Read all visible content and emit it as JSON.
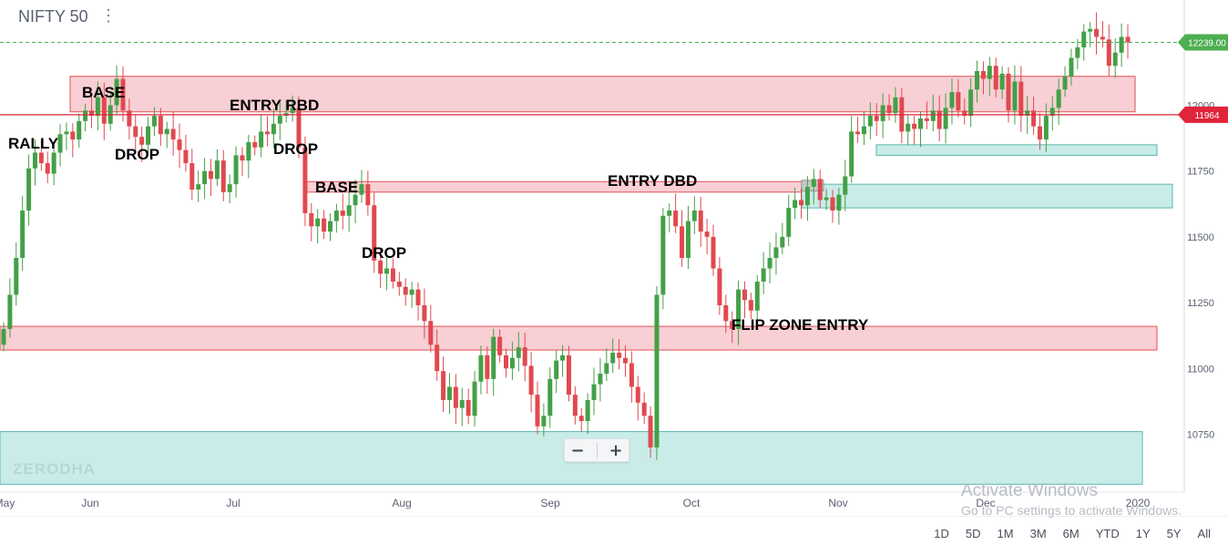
{
  "header": {
    "title": "NIFTY 50",
    "menu_icon": "vertical-dots-icon"
  },
  "zoom": {
    "minus_label": "−",
    "plus_label": "+"
  },
  "watermark": {
    "brand": "ZERODHA",
    "line1": "Activate Windows",
    "line2": "Go to PC settings to activate Windows."
  },
  "ranges": [
    "1D",
    "5D",
    "1M",
    "3M",
    "6M",
    "YTD",
    "1Y",
    "5Y",
    "All"
  ],
  "colors": {
    "up": "#43a047",
    "down": "#e0494f",
    "supply_fill": "#f8cdd2",
    "supply_border": "#e0494f",
    "demand_fill": "#c8ebe7",
    "demand_border": "#4db6ac",
    "price_tag": "#4caf50",
    "level_tag": "#e0243a"
  },
  "chart_data": {
    "type": "candlestick",
    "title": "NIFTY 50",
    "y_ticks": [
      10750,
      11000,
      11250,
      11500,
      11750,
      12000
    ],
    "ylim": [
      10530,
      12400
    ],
    "x_tick_labels": [
      "May",
      "Jun",
      "Jul",
      "Aug",
      "Sep",
      "Oct",
      "Nov",
      "Dec",
      "2020"
    ],
    "last_price_label": "12239.00",
    "horizontal_level_label": "11964",
    "horizontal_level": 11964,
    "last_price": 12239,
    "zones": [
      {
        "kind": "supply",
        "low": 11975,
        "high": 12110
      },
      {
        "kind": "supply",
        "low": 11670,
        "high": 11710
      },
      {
        "kind": "demand",
        "low": 11610,
        "high": 11700
      },
      {
        "kind": "demand",
        "low": 11810,
        "high": 11850
      },
      {
        "kind": "supply",
        "low": 11070,
        "high": 11160
      },
      {
        "kind": "demand",
        "low": 10560,
        "high": 10760
      }
    ],
    "annotations": [
      "RALLY",
      "BASE",
      "DROP",
      "ENTRY RBD",
      "DROP",
      "BASE",
      "DROP",
      "ENTRY DBD",
      "FLIP ZONE ENTRY"
    ],
    "closes": [
      11150,
      11280,
      11420,
      11600,
      11760,
      11820,
      11780,
      11740,
      11820,
      11890,
      11900,
      11870,
      11940,
      11980,
      11960,
      12030,
      11930,
      12000,
      12100,
      11980,
      11920,
      11880,
      11850,
      11920,
      11960,
      11890,
      11910,
      11870,
      11830,
      11780,
      11680,
      11700,
      11750,
      11720,
      11790,
      11670,
      11700,
      11810,
      11790,
      11860,
      11840,
      11900,
      11890,
      11930,
      11960,
      11970,
      11990,
      11840,
      11590,
      11540,
      11570,
      11520,
      11560,
      11600,
      11580,
      11620,
      11660,
      11700,
      11620,
      11410,
      11360,
      11380,
      11330,
      11310,
      11280,
      11300,
      11240,
      11180,
      11090,
      10990,
      10880,
      10930,
      10850,
      10880,
      10820,
      10950,
      11050,
      10960,
      11120,
      11050,
      11000,
      11040,
      11080,
      11010,
      10900,
      10780,
      10820,
      10960,
      11030,
      11050,
      10900,
      10820,
      10800,
      10880,
      10940,
      10980,
      11020,
      11060,
      11040,
      11020,
      10930,
      10870,
      10820,
      10700,
      11280,
      11580,
      11600,
      11540,
      11420,
      11560,
      11600,
      11520,
      11500,
      11380,
      11240,
      11180,
      11150,
      11300,
      11260,
      11220,
      11330,
      11380,
      11420,
      11460,
      11500,
      11610,
      11640,
      11620,
      11690,
      11720,
      11640,
      11650,
      11600,
      11660,
      11730,
      11900,
      11890,
      11920,
      11960,
      11940,
      12000,
      11970,
      12030,
      11900,
      11930,
      11910,
      11950,
      11940,
      11980,
      11910,
      11990,
      12050,
      11980,
      11960,
      12060,
      12130,
      12100,
      12150,
      12060,
      12120,
      11980,
      12090,
      11960,
      11980,
      11920,
      11870,
      11960,
      11990,
      12060,
      12110,
      12180,
      12220,
      12280,
      12290,
      12260,
      12250,
      12150,
      12200,
      12260,
      12239
    ]
  }
}
